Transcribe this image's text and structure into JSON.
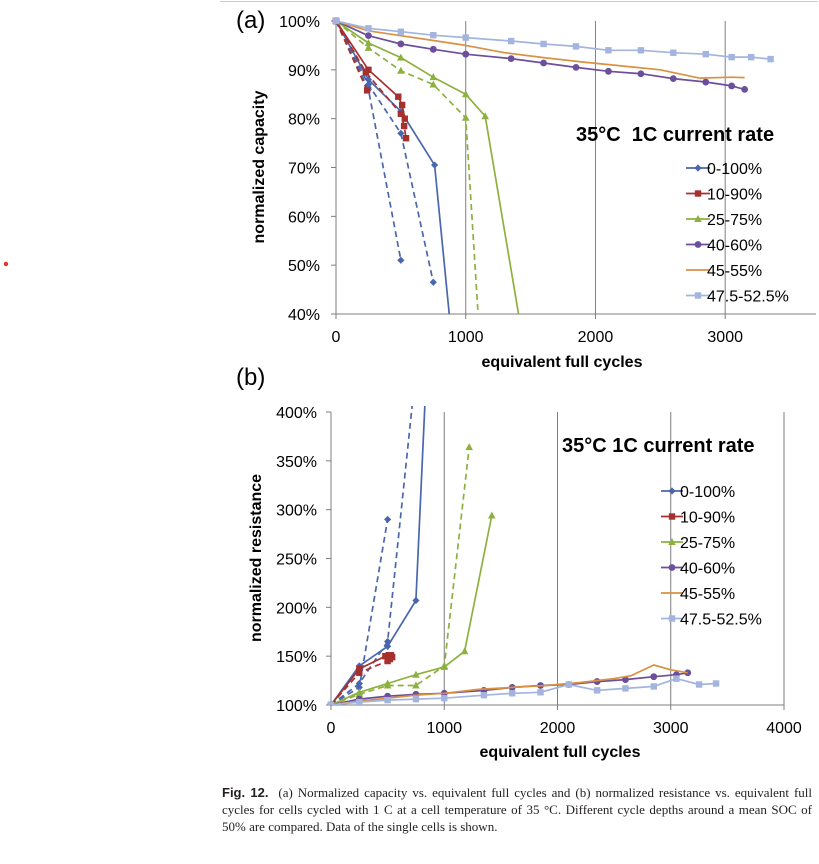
{
  "figure": {
    "caption_label": "Fig. 12.",
    "caption_text": "(a) Normalized capacity vs. equivalent full cycles and (b) normalized resistance vs. equivalent full cycles for cells cycled with 1 C at a cell temperature of 35 °C. Different cycle depths around a mean SOC of 50% are compared. Data of the single cells is shown."
  },
  "chart_data": [
    {
      "panel_label": "(a)",
      "type": "line",
      "title": "35°C  1C current rate",
      "xlabel": "equivalent full cycles",
      "ylabel": "normalized capacity",
      "xlim": [
        0,
        3700
      ],
      "ylim": [
        40,
        100
      ],
      "x_ticks": [
        0,
        1000,
        2000,
        3000
      ],
      "x_tick_labels": [
        "0",
        "1000",
        "2000",
        "3000"
      ],
      "y_ticks": [
        40,
        50,
        60,
        70,
        80,
        90,
        100
      ],
      "y_tick_labels": [
        "40%",
        "50%",
        "60%",
        "70%",
        "80%",
        "90%",
        "100%"
      ],
      "grid": "vertical major",
      "legend_position": "right",
      "series": [
        {
          "name": "0-100%",
          "color": "#4a66ac",
          "marker": "diamond",
          "cells": [
            {
              "dash": false,
              "points": [
                [
                  0,
                  100
                ],
                [
                  250,
                  88
                ],
                [
                  500,
                  81.5
                ],
                [
                  760,
                  70.5
                ],
                [
                  880,
                  38
                ]
              ]
            },
            {
              "dash": true,
              "points": [
                [
                  0,
                  100
                ],
                [
                  250,
                  87
                ],
                [
                  500,
                  77
                ],
                [
                  750,
                  46.5
                ]
              ]
            },
            {
              "dash": true,
              "points": [
                [
                  0,
                  100
                ],
                [
                  250,
                  86
                ],
                [
                  500,
                  51
                ]
              ]
            }
          ]
        },
        {
          "name": "10-90%",
          "color": "#a5302d",
          "marker": "square",
          "cells": [
            {
              "dash": false,
              "points": [
                [
                  0,
                  100
                ],
                [
                  250,
                  90
                ],
                [
                  480,
                  84.5
                ],
                [
                  510,
                  82.8
                ],
                [
                  530,
                  80
                ]
              ]
            },
            {
              "dash": true,
              "points": [
                [
                  0,
                  100
                ],
                [
                  230,
                  89.5
                ],
                [
                  500,
                  81
                ],
                [
                  525,
                  78.5
                ],
                [
                  540,
                  76
                ]
              ]
            },
            {
              "dash": true,
              "points": [
                [
                  0,
                  100
                ],
                [
                  240,
                  85.8
                ]
              ]
            }
          ]
        },
        {
          "name": "25-75%",
          "color": "#8db13e",
          "marker": "triangle",
          "cells": [
            {
              "dash": false,
              "points": [
                [
                  0,
                  100
                ],
                [
                  250,
                  95.5
                ],
                [
                  500,
                  92.5
                ],
                [
                  750,
                  88.5
                ],
                [
                  1000,
                  85
                ],
                [
                  1150,
                  80.5
                ],
                [
                  1420,
                  38
                ]
              ]
            },
            {
              "dash": true,
              "points": [
                [
                  0,
                  100
                ],
                [
                  250,
                  94.5
                ],
                [
                  500,
                  89.8
                ],
                [
                  750,
                  87
                ],
                [
                  1000,
                  80.2
                ],
                [
                  1100,
                  38
                ]
              ]
            }
          ]
        },
        {
          "name": "40-60%",
          "color": "#6b4e9c",
          "marker": "circle",
          "cells": [
            {
              "dash": false,
              "points": [
                [
                  0,
                  100
                ],
                [
                  250,
                  97
                ],
                [
                  500,
                  95.3
                ],
                [
                  750,
                  94.2
                ],
                [
                  1000,
                  93.2
                ],
                [
                  1350,
                  92.3
                ],
                [
                  1600,
                  91.4
                ],
                [
                  1850,
                  90.5
                ],
                [
                  2100,
                  89.7
                ],
                [
                  2350,
                  89.2
                ],
                [
                  2600,
                  88.2
                ],
                [
                  2850,
                  87.5
                ],
                [
                  3050,
                  86.7
                ],
                [
                  3150,
                  86
                ]
              ]
            }
          ]
        },
        {
          "name": "45-55%",
          "color": "#d99142",
          "marker": "none",
          "cells": [
            {
              "dash": false,
              "points": [
                [
                  0,
                  100
                ],
                [
                  250,
                  98
                ],
                [
                  500,
                  97
                ],
                [
                  750,
                  96
                ],
                [
                  1000,
                  95
                ],
                [
                  1300,
                  93.5
                ],
                [
                  1600,
                  92.5
                ],
                [
                  1900,
                  91.6
                ],
                [
                  2200,
                  90.8
                ],
                [
                  2500,
                  90
                ],
                [
                  2800,
                  88.3
                ],
                [
                  3050,
                  88.5
                ],
                [
                  3150,
                  88.4
                ]
              ]
            }
          ]
        },
        {
          "name": "47.5-52.5%",
          "color": "#a3b4df",
          "marker": "square",
          "cells": [
            {
              "dash": false,
              "points": [
                [
                  0,
                  100
                ],
                [
                  250,
                  98.5
                ],
                [
                  500,
                  97.8
                ],
                [
                  750,
                  97.1
                ],
                [
                  1000,
                  96.6
                ],
                [
                  1350,
                  95.9
                ],
                [
                  1600,
                  95.3
                ],
                [
                  1850,
                  94.8
                ],
                [
                  2100,
                  94
                ],
                [
                  2350,
                  94
                ],
                [
                  2600,
                  93.5
                ],
                [
                  2850,
                  93.2
                ],
                [
                  3050,
                  92.6
                ],
                [
                  3200,
                  92.6
                ],
                [
                  3350,
                  92.2
                ]
              ]
            }
          ]
        }
      ]
    },
    {
      "panel_label": "(b)",
      "type": "line",
      "title": "35°C 1C current rate",
      "xlabel": "equivalent full cycles",
      "ylabel": "normalized resistance",
      "xlim": [
        0,
        4000
      ],
      "ylim": [
        100,
        400
      ],
      "x_ticks": [
        0,
        1000,
        2000,
        3000,
        4000
      ],
      "x_tick_labels": [
        "0",
        "1000",
        "2000",
        "3000",
        "4000"
      ],
      "y_ticks": [
        100,
        150,
        200,
        250,
        300,
        350,
        400
      ],
      "y_tick_labels": [
        "100%",
        "150%",
        "200%",
        "250%",
        "300%",
        "350%",
        "400%"
      ],
      "grid": "vertical major",
      "legend_position": "right",
      "series": [
        {
          "name": "0-100%",
          "color": "#4a66ac",
          "marker": "diamond",
          "cells": [
            {
              "dash": false,
              "points": [
                [
                  0,
                  100
                ],
                [
                  250,
                  140
                ],
                [
                  500,
                  160
                ],
                [
                  750,
                  207
                ],
                [
                  830,
                  410
                ]
              ]
            },
            {
              "dash": true,
              "points": [
                [
                  0,
                  100
                ],
                [
                  250,
                  122
                ],
                [
                  500,
                  165
                ],
                [
                  720,
                  410
                ]
              ]
            },
            {
              "dash": true,
              "points": [
                [
                  0,
                  100
                ],
                [
                  250,
                  118
                ],
                [
                  500,
                  290
                ]
              ]
            }
          ]
        },
        {
          "name": "10-90%",
          "color": "#a5302d",
          "marker": "square",
          "cells": [
            {
              "dash": false,
              "points": [
                [
                  0,
                  100
                ],
                [
                  250,
                  137
                ],
                [
                  480,
                  150
                ],
                [
                  510,
                  151
                ],
                [
                  530,
                  151
                ]
              ]
            },
            {
              "dash": true,
              "points": [
                [
                  0,
                  100
                ],
                [
                  250,
                  133
                ],
                [
                  500,
                  145
                ],
                [
                  520,
                  147
                ],
                [
                  540,
                  149
                ]
              ]
            }
          ]
        },
        {
          "name": "25-75%",
          "color": "#8db13e",
          "marker": "triangle",
          "cells": [
            {
              "dash": false,
              "points": [
                [
                  0,
                  100
                ],
                [
                  250,
                  113
                ],
                [
                  500,
                  122
                ],
                [
                  750,
                  131
                ],
                [
                  1000,
                  139
                ],
                [
                  1180,
                  155
                ],
                [
                  1420,
                  294
                ]
              ]
            },
            {
              "dash": true,
              "points": [
                [
                  0,
                  100
                ],
                [
                  250,
                  111
                ],
                [
                  500,
                  120
                ],
                [
                  750,
                  120
                ],
                [
                  1000,
                  140
                ],
                [
                  1220,
                  364
                ]
              ]
            }
          ]
        },
        {
          "name": "40-60%",
          "color": "#6b4e9c",
          "marker": "circle",
          "cells": [
            {
              "dash": false,
              "points": [
                [
                  0,
                  100
                ],
                [
                  250,
                  106
                ],
                [
                  500,
                  109
                ],
                [
                  750,
                  111
                ],
                [
                  1000,
                  112
                ],
                [
                  1350,
                  115
                ],
                [
                  1600,
                  118
                ],
                [
                  1850,
                  120
                ],
                [
                  2100,
                  121
                ],
                [
                  2350,
                  124
                ],
                [
                  2600,
                  126
                ],
                [
                  2850,
                  129
                ],
                [
                  3050,
                  131
                ],
                [
                  3150,
                  133
                ]
              ]
            }
          ]
        },
        {
          "name": "45-55%",
          "color": "#d99142",
          "marker": "none",
          "cells": [
            {
              "dash": false,
              "points": [
                [
                  0,
                  100
                ],
                [
                  250,
                  104
                ],
                [
                  500,
                  107
                ],
                [
                  750,
                  110
                ],
                [
                  1000,
                  112
                ],
                [
                  1300,
                  116
                ],
                [
                  1600,
                  118
                ],
                [
                  1900,
                  120
                ],
                [
                  2200,
                  123
                ],
                [
                  2500,
                  127
                ],
                [
                  2650,
                  130
                ],
                [
                  2850,
                  141
                ],
                [
                  3000,
                  136
                ],
                [
                  3150,
                  133
                ]
              ]
            }
          ]
        },
        {
          "name": "47.5-52.5%",
          "color": "#a3b4df",
          "marker": "square",
          "cells": [
            {
              "dash": false,
              "points": [
                [
                  0,
                  100
                ],
                [
                  250,
                  103
                ],
                [
                  500,
                  105
                ],
                [
                  750,
                  106
                ],
                [
                  1000,
                  107
                ],
                [
                  1350,
                  110
                ],
                [
                  1600,
                  112
                ],
                [
                  1850,
                  113
                ],
                [
                  2100,
                  121
                ],
                [
                  2350,
                  115
                ],
                [
                  2600,
                  117
                ],
                [
                  2850,
                  119
                ],
                [
                  3050,
                  127
                ],
                [
                  3250,
                  121
                ],
                [
                  3400,
                  122
                ]
              ]
            }
          ]
        }
      ]
    }
  ]
}
